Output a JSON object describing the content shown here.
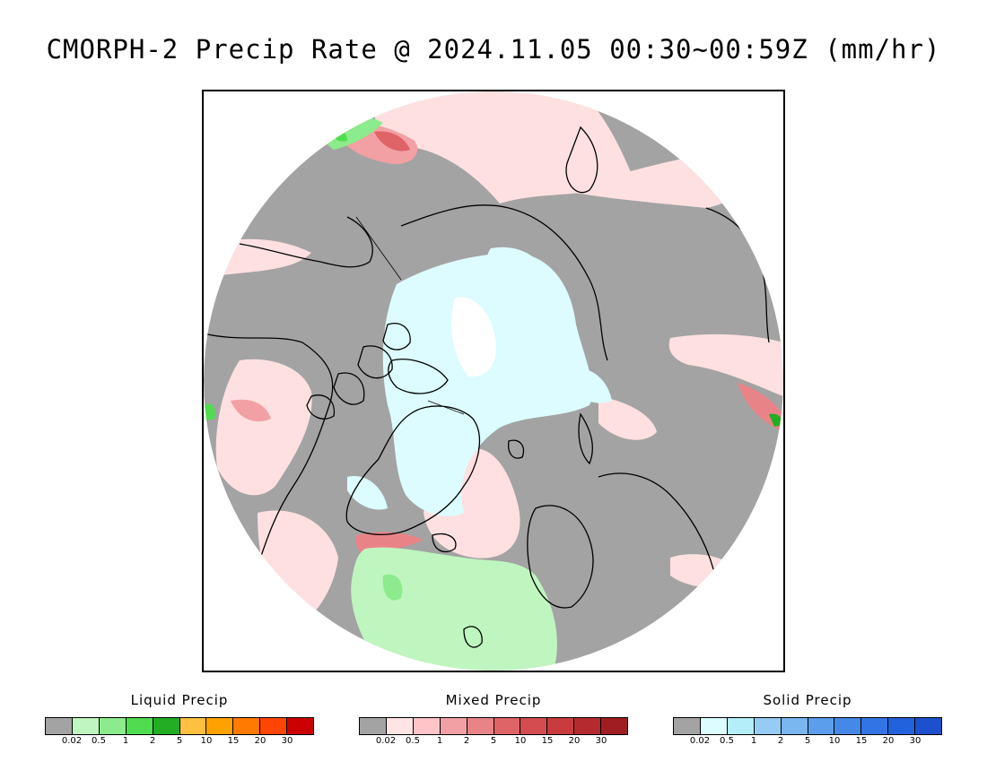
{
  "title": "CMORPH-2 Precip Rate @ 2024.11.05 00:30~00:59Z (mm/hr)",
  "legends": [
    {
      "title": "Liquid Precip",
      "colors": [
        "#a3a3a3",
        "#bff5bf",
        "#8ceb8c",
        "#4fdc4f",
        "#22ad22",
        "#ffbf40",
        "#ffa100",
        "#ff7a00",
        "#ff4500",
        "#cc0000"
      ],
      "ticks": [
        "0.02",
        "0.5",
        "1",
        "2",
        "5",
        "10",
        "15",
        "20",
        "30"
      ]
    },
    {
      "title": "Mixed Precip",
      "colors": [
        "#a3a3a3",
        "#ffe4e4",
        "#ffc4c8",
        "#f2a0a4",
        "#e88488",
        "#de6468",
        "#d44c50",
        "#c83c40",
        "#b42a2e",
        "#a01e22"
      ],
      "ticks": [
        "0.02",
        "0.5",
        "1",
        "2",
        "5",
        "10",
        "15",
        "20",
        "30"
      ]
    },
    {
      "title": "Solid Precip",
      "colors": [
        "#a3a3a3",
        "#dcfcff",
        "#b4eef8",
        "#96ccf4",
        "#7ab6f0",
        "#5a9eec",
        "#4688e8",
        "#3274e4",
        "#2262dc",
        "#1c50cc"
      ],
      "ticks": [
        "0.02",
        "0.5",
        "1",
        "2",
        "5",
        "10",
        "15",
        "20",
        "30"
      ]
    }
  ],
  "map": {
    "background_color": "#a3a3a3",
    "coastline_color": "#000000",
    "projection": "north-polar-stereographic"
  }
}
